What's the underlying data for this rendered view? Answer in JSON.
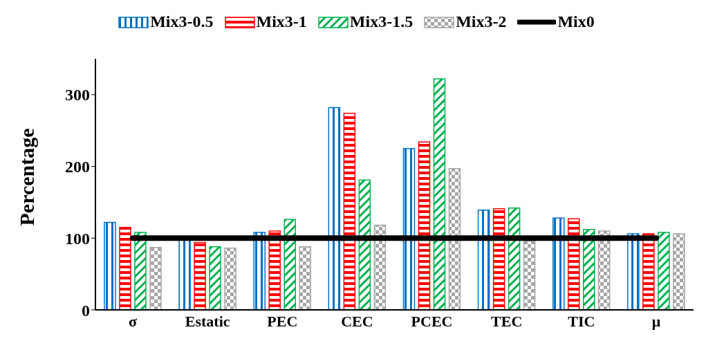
{
  "chart_data": {
    "type": "bar",
    "ylabel": "Percentage",
    "categories": [
      "σ",
      "Estatic",
      "PEC",
      "CEC",
      "PCEC",
      "TEC",
      "TIC",
      "μ"
    ],
    "series": [
      {
        "name": "Mix3-0.5",
        "color": "#0070c0",
        "values": [
          122,
          99,
          108,
          282,
          225,
          139,
          128,
          106
        ]
      },
      {
        "name": "Mix3-1",
        "color": "#ff0000",
        "values": [
          115,
          94,
          110,
          274,
          234,
          141,
          127,
          106
        ]
      },
      {
        "name": "Mix3-1.5",
        "color": "#00b050",
        "values": [
          108,
          88,
          126,
          181,
          322,
          142,
          112,
          108
        ]
      },
      {
        "name": "Mix3-2",
        "color": "#a6a6a6",
        "values": [
          87,
          86,
          88,
          118,
          197,
          96,
          110,
          106
        ]
      },
      {
        "name": "Mix0",
        "type": "line",
        "color": "#000000",
        "values": [
          100,
          100,
          100,
          100,
          100,
          100,
          100,
          100
        ]
      }
    ],
    "ylim": [
      0,
      350
    ],
    "yticks": [
      0,
      100,
      200,
      300
    ],
    "grid": false,
    "legend": "top",
    "marker": "none"
  }
}
